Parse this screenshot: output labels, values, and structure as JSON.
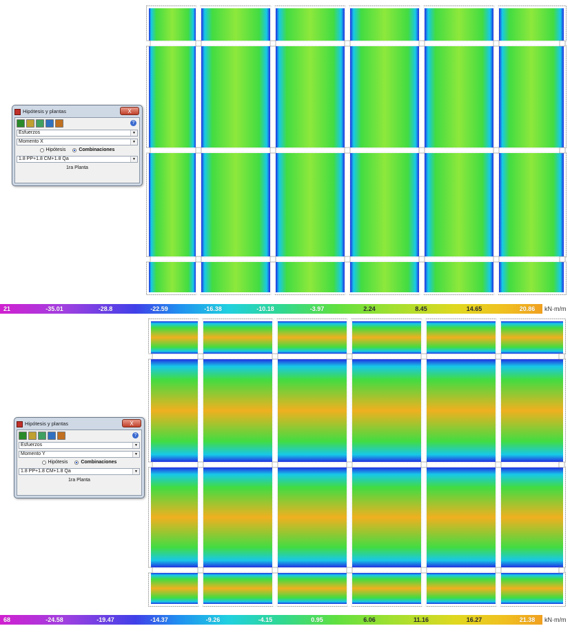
{
  "colors": {
    "slab_base": "#42dc42",
    "slab_light": "#8ee83c",
    "negative_edge": "#2030e0",
    "negative_mid": "#18c8e8",
    "positive_peak": "#f0b020",
    "beam": "#ffffff",
    "outline": "#9a9a9a"
  },
  "plots": [
    {
      "id": "top",
      "colorbar": {
        "ticks": [
          "21",
          "-35.01",
          "-28.8",
          "-22.59",
          "-16.38",
          "-10.18",
          "-3.97",
          "2.24",
          "8.45",
          "14.65",
          "20.86"
        ],
        "unit": "kN·m/m"
      },
      "dialog": {
        "title": "Hipótesis y plantas",
        "close": "X",
        "help": "?",
        "select1": "Esfuerzos",
        "select2": "Momento X",
        "radio1": "Hipótesis",
        "radio2": "Combinaciones",
        "combo": "1.8 PP+1.8 CM+1.8 Qa",
        "floor": "1ra Planta",
        "tool_icons": [
          "gear-icon",
          "pencil-icon",
          "layers-icon",
          "slab-icon",
          "building-icon"
        ]
      }
    },
    {
      "id": "bottom",
      "colorbar": {
        "ticks": [
          "68",
          "-24.58",
          "-19.47",
          "-14.37",
          "-9.26",
          "-4.15",
          "0.95",
          "6.06",
          "11.16",
          "16.27",
          "21.38"
        ],
        "unit": "kN·m/m"
      },
      "dialog": {
        "title": "Hipótesis y plantas",
        "close": "X",
        "help": "?",
        "select1": "Esfuerzos",
        "select2": "Momento Y",
        "radio1": "Hipótesis",
        "radio2": "Combinaciones",
        "combo": "1.8 PP+1.8 CM+1.8 Qa",
        "floor": "1ra Planta",
        "tool_icons": [
          "gear-icon",
          "pencil-icon",
          "layers-icon",
          "slab-icon",
          "building-icon"
        ]
      }
    }
  ]
}
